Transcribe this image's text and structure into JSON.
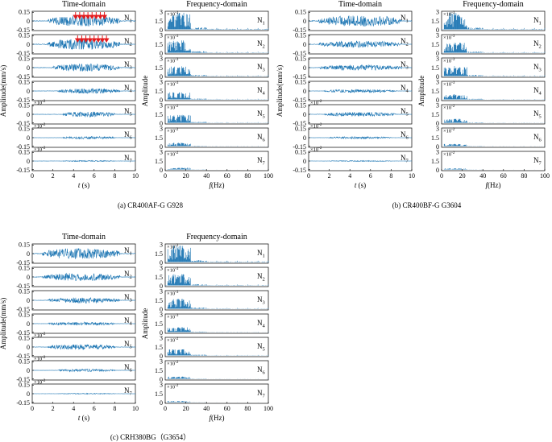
{
  "figure": {
    "colors": {
      "signal": "#1f77b4",
      "marker": "#e41a1c",
      "axis": "#000000"
    },
    "time_axis": {
      "ticks": [
        "0",
        "2",
        "4",
        "6",
        "8",
        "10"
      ],
      "xlim": [
        0,
        10
      ],
      "xlabel_var": "t",
      "xlabel_unit": " (s)"
    },
    "freq_axis": {
      "ticks": [
        "0",
        "20",
        "40",
        "60",
        "80",
        "100"
      ],
      "xlim": [
        0,
        100
      ],
      "xlabel_var": "f",
      "xlabel_unit": "(Hz)"
    },
    "time_yticks": [
      "0.15",
      "0",
      "-0.15"
    ],
    "freq_yticks": [
      "3",
      "1.5",
      "0"
    ],
    "exp_base": "×10",
    "exp_time": "-2",
    "exp_freq": "-3"
  },
  "chart_data": [
    {
      "type": "line",
      "panel": "a",
      "caption": "(a)  CR400AF-G G928",
      "time_title": "Time-domain",
      "freq_title": "Frequency-domain",
      "time_ylabel": "Amplitude(mm/s)",
      "freq_ylabel": "Amplitude",
      "time_ylim": [
        -0.15,
        0.15
      ],
      "freq_ylim": [
        0,
        0.003
      ],
      "channels": [
        {
          "base": "N",
          "sub": "1",
          "time_amp": 0.1,
          "time_window": [
            1.5,
            8.5
          ],
          "time_exp": false,
          "freq_amp": 0.003,
          "freq_exp": false
        },
        {
          "base": "N",
          "sub": "2",
          "time_amp": 0.1,
          "time_window": [
            1.5,
            8.5
          ],
          "time_exp": false,
          "freq_amp": 0.0022,
          "freq_exp": false
        },
        {
          "base": "N",
          "sub": "3",
          "time_amp": 0.07,
          "time_window": [
            2,
            8.5
          ],
          "time_exp": false,
          "freq_amp": 0.0018,
          "freq_exp": false
        },
        {
          "base": "N",
          "sub": "4",
          "time_amp": 0.045,
          "time_window": [
            2.5,
            8.5
          ],
          "time_exp": false,
          "freq_amp": 0.0013,
          "freq_exp": false
        },
        {
          "base": "N",
          "sub": "5",
          "time_amp": 0.05,
          "time_window": [
            3,
            8
          ],
          "time_exp": true,
          "freq_amp": 0.0014,
          "freq_exp": true
        },
        {
          "base": "N",
          "sub": "6",
          "time_amp": 0.025,
          "time_window": [
            3,
            8
          ],
          "time_exp": true,
          "freq_amp": 0.0006,
          "freq_exp": true
        },
        {
          "base": "N",
          "sub": "7",
          "time_amp": 0.01,
          "time_window": [
            3,
            8
          ],
          "time_exp": true,
          "freq_amp": 0.0003,
          "freq_exp": true
        }
      ],
      "markers": [
        {
          "channel": "1",
          "t": [
            4.2,
            4.6,
            5.0,
            5.4,
            5.8,
            6.2,
            6.6,
            7.0
          ]
        },
        {
          "channel": "2",
          "t": [
            4.4,
            4.8,
            5.2,
            5.6,
            6.0,
            6.4,
            6.8,
            7.2
          ]
        }
      ]
    },
    {
      "type": "line",
      "panel": "b",
      "caption": "(b)  CR400BF-G G3604",
      "time_title": "Time-domain",
      "freq_title": "Frequency-domain",
      "time_ylabel": "Amplitude(mm/s)",
      "freq_ylabel": "Amplitude",
      "time_ylim": [
        -0.15,
        0.15
      ],
      "freq_ylim": [
        0,
        0.003
      ],
      "channels": [
        {
          "base": "N",
          "sub": "1",
          "time_amp": 0.1,
          "time_window": [
            1,
            9
          ],
          "time_exp": false,
          "freq_amp": 0.003,
          "freq_exp": false
        },
        {
          "base": "N",
          "sub": "2",
          "time_amp": 0.06,
          "time_window": [
            1,
            9
          ],
          "time_exp": false,
          "freq_amp": 0.0018,
          "freq_exp": false
        },
        {
          "base": "N",
          "sub": "3",
          "time_amp": 0.05,
          "time_window": [
            1,
            9
          ],
          "time_exp": false,
          "freq_amp": 0.0018,
          "freq_exp": false
        },
        {
          "base": "N",
          "sub": "4",
          "time_amp": 0.03,
          "time_window": [
            1.5,
            8.5
          ],
          "time_exp": false,
          "freq_amp": 0.0009,
          "freq_exp": false
        },
        {
          "base": "N",
          "sub": "5",
          "time_amp": 0.04,
          "time_window": [
            1.5,
            8.5
          ],
          "time_exp": true,
          "freq_amp": 0.0007,
          "freq_exp": true
        },
        {
          "base": "N",
          "sub": "6",
          "time_amp": 0.02,
          "time_window": [
            2,
            8
          ],
          "time_exp": true,
          "freq_amp": 0.0004,
          "freq_exp": true
        },
        {
          "base": "N",
          "sub": "7",
          "time_amp": 0.008,
          "time_window": [
            2,
            8
          ],
          "time_exp": true,
          "freq_amp": 0.0002,
          "freq_exp": true
        }
      ],
      "markers": []
    },
    {
      "type": "line",
      "panel": "c",
      "caption": "(c)  CRH380BG（G3654）",
      "time_title": "Time-domain",
      "freq_title": "Frequency-domain",
      "time_ylabel": "Amplitude(mm/s)",
      "freq_ylabel": "Amplitude",
      "time_ylim": [
        -0.15,
        0.15
      ],
      "freq_ylim": [
        0,
        0.003
      ],
      "channels": [
        {
          "base": "N",
          "sub": "1",
          "time_amp": 0.1,
          "time_window": [
            1,
            8.5
          ],
          "time_exp": false,
          "freq_amp": 0.003,
          "freq_exp": false
        },
        {
          "base": "N",
          "sub": "2",
          "time_amp": 0.07,
          "time_window": [
            1,
            8.5
          ],
          "time_exp": false,
          "freq_amp": 0.002,
          "freq_exp": false
        },
        {
          "base": "N",
          "sub": "3",
          "time_amp": 0.05,
          "time_window": [
            1.5,
            8.5
          ],
          "time_exp": false,
          "freq_amp": 0.0018,
          "freq_exp": false
        },
        {
          "base": "N",
          "sub": "4",
          "time_amp": 0.03,
          "time_window": [
            1.5,
            8
          ],
          "time_exp": false,
          "freq_amp": 0.0009,
          "freq_exp": false
        },
        {
          "base": "N",
          "sub": "5",
          "time_amp": 0.05,
          "time_window": [
            1.5,
            8
          ],
          "time_exp": true,
          "freq_amp": 0.0011,
          "freq_exp": true
        },
        {
          "base": "N",
          "sub": "6",
          "time_amp": 0.025,
          "time_window": [
            2.5,
            8
          ],
          "time_exp": true,
          "freq_amp": 0.0004,
          "freq_exp": true
        },
        {
          "base": "N",
          "sub": "7",
          "time_amp": 0.008,
          "time_window": [
            2.5,
            8
          ],
          "time_exp": true,
          "freq_amp": 0.0002,
          "freq_exp": true
        }
      ],
      "markers": []
    }
  ]
}
